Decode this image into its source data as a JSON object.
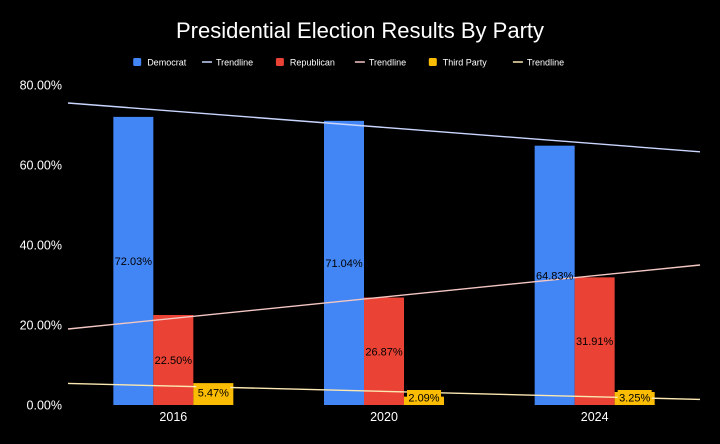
{
  "chart_data": {
    "type": "bar",
    "title": "Presidential Election Results By Party",
    "categories": [
      "2016",
      "2020",
      "2024"
    ],
    "ylim": [
      0,
      80
    ],
    "yticks": [
      0,
      20,
      40,
      60,
      80
    ],
    "ytick_labels": [
      "0.00%",
      "20.00%",
      "40.00%",
      "60.00%",
      "80.00%"
    ],
    "series": [
      {
        "name": "Democrat",
        "color": "#4285F4",
        "values": [
          72.03,
          71.04,
          64.83
        ],
        "labels": [
          "72.03%",
          "71.04%",
          "64.83%"
        ],
        "trendline_color": "#C9D6FF",
        "trendline_ends": [
          75.5,
          63.3
        ]
      },
      {
        "name": "Republican",
        "color": "#EA4335",
        "values": [
          22.5,
          26.87,
          31.91
        ],
        "labels": [
          "22.50%",
          "26.87%",
          "31.91%"
        ],
        "trendline_color": "#F4C7C3",
        "trendline_ends": [
          19.0,
          35.0
        ]
      },
      {
        "name": "Third Party",
        "color": "#FBBC04",
        "values": [
          5.47,
          2.09,
          3.25
        ],
        "labels": [
          "5.47%",
          "2.09%",
          "3.25%"
        ],
        "trendline_color": "#FCE8B2",
        "trendline_ends": [
          5.4,
          1.4
        ]
      }
    ],
    "trendline_label": "Trendline",
    "legend_position": "top"
  }
}
